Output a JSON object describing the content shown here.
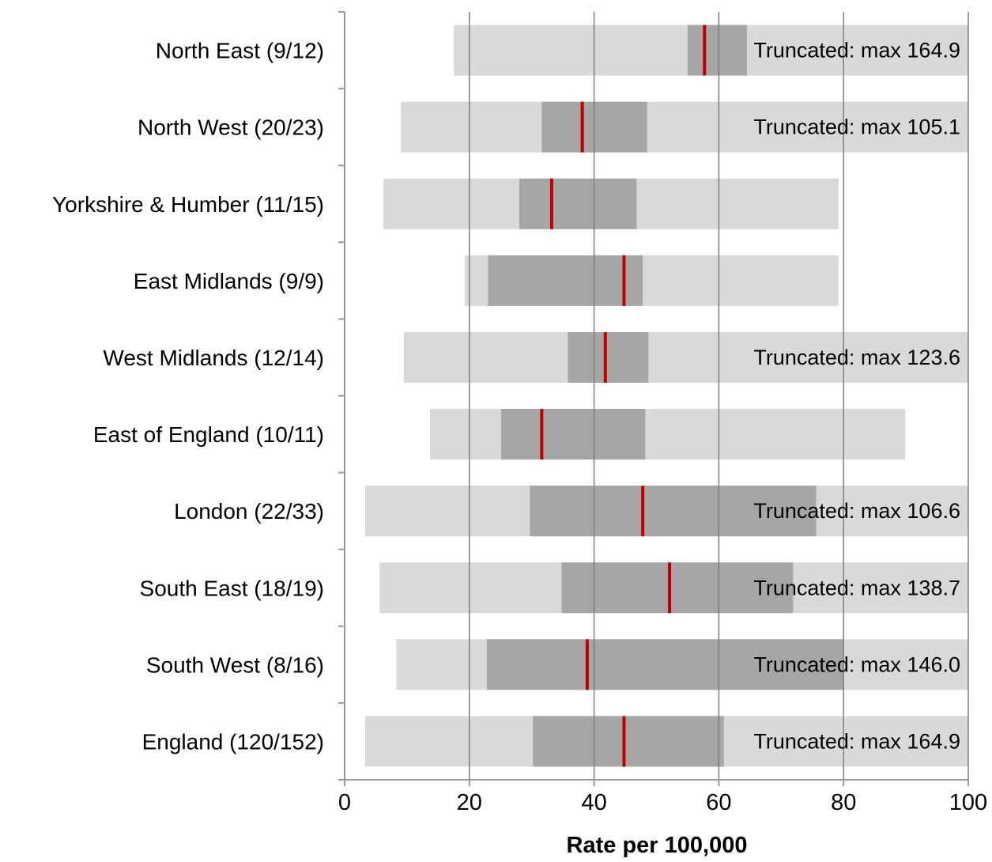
{
  "chart_data": {
    "type": "bar",
    "subtype": "range-bar",
    "title": "",
    "xlabel": "Rate per 100,000",
    "ylabel": "",
    "xlim": [
      0,
      100
    ],
    "x_ticks": [
      0,
      20,
      40,
      60,
      80,
      100
    ],
    "x_tick_labels": [
      "0",
      "20",
      "40",
      "60",
      "80",
      "100"
    ],
    "grid": "vertical",
    "categories": [
      "North East (9/12)",
      "North West (20/23)",
      "Yorkshire & Humber (11/15)",
      "East Midlands (9/9)",
      "West Midlands (12/14)",
      "East of England (10/11)",
      "London (22/33)",
      "South East (18/19)",
      "South West (8/16)",
      "England (120/152)"
    ],
    "series": [
      {
        "name": "",
        "role": "range",
        "low": [
          17.5,
          9.0,
          6.2,
          19.3,
          9.5,
          13.7,
          3.3,
          5.6,
          8.3,
          3.3
        ],
        "high": [
          164.9,
          105.1,
          79.2,
          79.2,
          123.6,
          89.9,
          106.6,
          138.7,
          146.0,
          164.9
        ]
      },
      {
        "name": "",
        "role": "interquartile",
        "low": [
          55.0,
          31.6,
          28.0,
          23.0,
          35.8,
          25.1,
          29.7,
          34.8,
          22.8,
          30.2
        ],
        "high": [
          64.5,
          48.5,
          46.8,
          47.8,
          48.7,
          48.2,
          75.6,
          71.9,
          80.0,
          60.8
        ]
      },
      {
        "name": "",
        "role": "median",
        "values": [
          57.7,
          38.1,
          33.2,
          44.8,
          41.8,
          31.6,
          47.8,
          52.1,
          38.9,
          44.8
        ]
      }
    ],
    "annotations": [
      "Truncated: max 164.9",
      "Truncated: max 105.1",
      "",
      "",
      "Truncated: max 123.6",
      "",
      "Truncated: max 106.6",
      "Truncated: max 138.7",
      "Truncated: max 146.0",
      "Truncated: max 164.9"
    ],
    "colors": {
      "range": "#d9d9d9",
      "interquartile": "#a6a6a6",
      "median": "#c00000",
      "grid": "#7f7f7f",
      "axis": "#999999"
    }
  }
}
